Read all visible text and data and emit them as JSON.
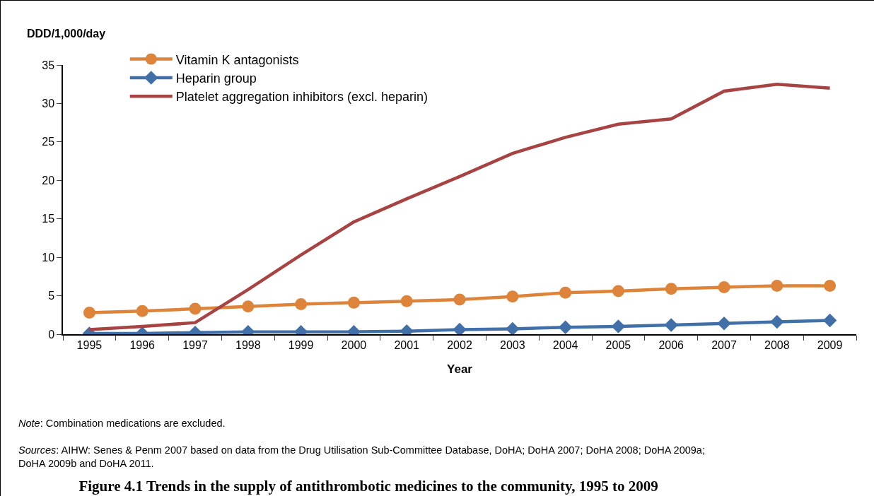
{
  "chart_data": {
    "type": "line",
    "title": "Figure 4.1 Trends in the supply of antithrombotic medicines to the community, 1995 to 2009",
    "xlabel": "Year",
    "ylabel": "DDD/1,000/day",
    "categories": [
      "1995",
      "1996",
      "1997",
      "1998",
      "1999",
      "2000",
      "2001",
      "2002",
      "2003",
      "2004",
      "2005",
      "2006",
      "2007",
      "2008",
      "2009"
    ],
    "series": [
      {
        "name": "Vitamin K antagonists",
        "color": "#dd843a",
        "marker": "circle",
        "values": [
          2.8,
          3.0,
          3.3,
          3.6,
          3.9,
          4.1,
          4.3,
          4.5,
          4.9,
          5.4,
          5.6,
          5.9,
          6.1,
          6.3,
          6.3
        ]
      },
      {
        "name": "Heparin group",
        "color": "#4170a9",
        "marker": "diamond",
        "values": [
          0.1,
          0.1,
          0.2,
          0.3,
          0.3,
          0.3,
          0.4,
          0.6,
          0.7,
          0.9,
          1.0,
          1.2,
          1.4,
          1.6,
          1.8
        ]
      },
      {
        "name": "Platelet aggregation inhibitors (excl. heparin)",
        "color": "#a84343",
        "marker": "none",
        "values": [
          0.6,
          1.0,
          1.5,
          5.8,
          10.3,
          14.6,
          17.6,
          20.5,
          23.5,
          25.6,
          27.3,
          28.0,
          31.6,
          32.5,
          32.0
        ]
      }
    ],
    "ylim": [
      0,
      35
    ],
    "yticks": [
      0,
      5,
      10,
      15,
      20,
      25,
      30,
      35
    ],
    "grid": false,
    "legend": "top left",
    "annotations": [
      "Note: Combination medications are excluded.",
      "Sources: AIHW: Senes & Penm 2007 based on data from the Drug Utilisation Sub-Committee Database, DoHA; DoHA 2007; DoHA 2008; DoHA 2009a; DoHA 2009b and DoHA 2011."
    ]
  }
}
